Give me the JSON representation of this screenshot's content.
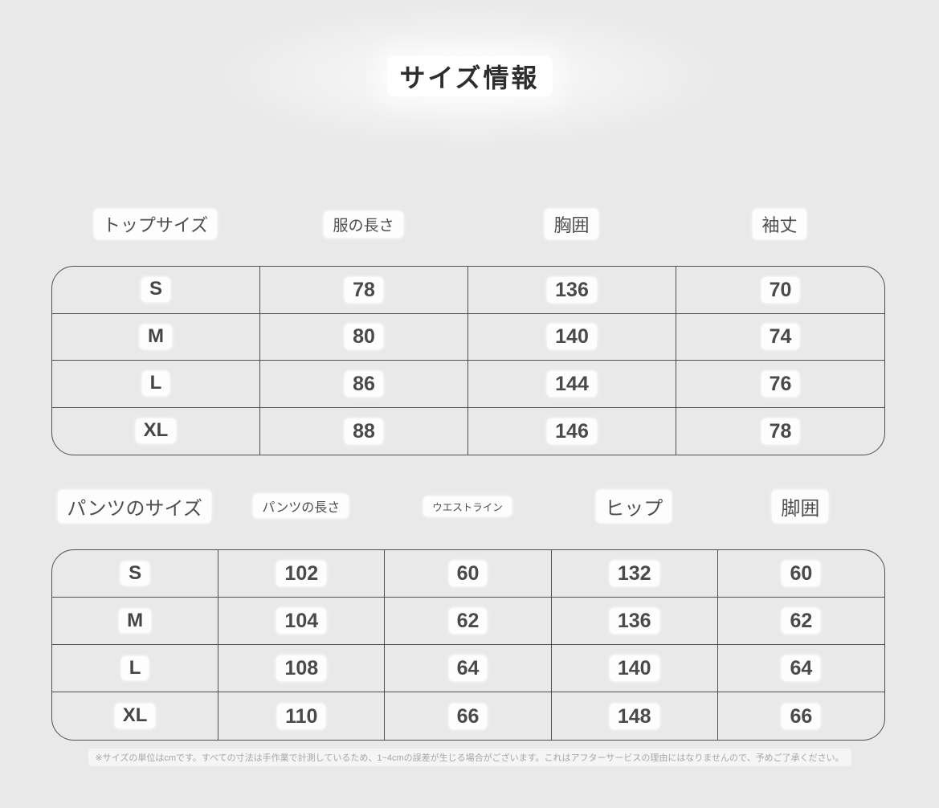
{
  "title": "サイズ情報",
  "tops_table": {
    "headers": [
      "トップサイズ",
      "服の長さ",
      "胸囲",
      "袖丈"
    ],
    "rows": [
      [
        "S",
        "78",
        "136",
        "70"
      ],
      [
        "M",
        "80",
        "140",
        "74"
      ],
      [
        "L",
        "86",
        "144",
        "76"
      ],
      [
        "XL",
        "88",
        "146",
        "78"
      ]
    ]
  },
  "pants_table": {
    "headers": [
      "パンツのサイズ",
      "パンツの長さ",
      "ウエストライン",
      "ヒップ",
      "脚囲"
    ],
    "rows": [
      [
        "S",
        "102",
        "60",
        "132",
        "60"
      ],
      [
        "M",
        "104",
        "62",
        "136",
        "62"
      ],
      [
        "L",
        "108",
        "64",
        "140",
        "64"
      ],
      [
        "XL",
        "110",
        "66",
        "148",
        "66"
      ]
    ]
  },
  "footnote": "※サイズの単位はcmです。すべての寸法は手作業で計測しているため、1~4cmの誤差が生じる場合がございます。これはアフターサービスの理由にはなりませんので、予めご了承ください。",
  "colors": {
    "background": "#e9e9e9",
    "chip_background": "#ffffff",
    "border": "#4f4f4f",
    "text_dark": "#4a4a4a",
    "footnote_text": "#a6a6a6"
  },
  "chart_data": [
    {
      "type": "table",
      "title": "サイズ情報 — トップス",
      "columns": [
        "トップサイズ",
        "服の長さ",
        "胸囲",
        "袖丈"
      ],
      "rows": [
        [
          "S",
          78,
          136,
          70
        ],
        [
          "M",
          80,
          140,
          74
        ],
        [
          "L",
          86,
          144,
          76
        ],
        [
          "XL",
          88,
          146,
          78
        ]
      ],
      "units": "cm"
    },
    {
      "type": "table",
      "title": "サイズ情報 — パンツ",
      "columns": [
        "パンツのサイズ",
        "パンツの長さ",
        "ウエストライン",
        "ヒップ",
        "脚囲"
      ],
      "rows": [
        [
          "S",
          102,
          60,
          132,
          60
        ],
        [
          "M",
          104,
          62,
          136,
          62
        ],
        [
          "L",
          108,
          64,
          140,
          64
        ],
        [
          "XL",
          110,
          66,
          148,
          66
        ]
      ],
      "units": "cm"
    }
  ]
}
